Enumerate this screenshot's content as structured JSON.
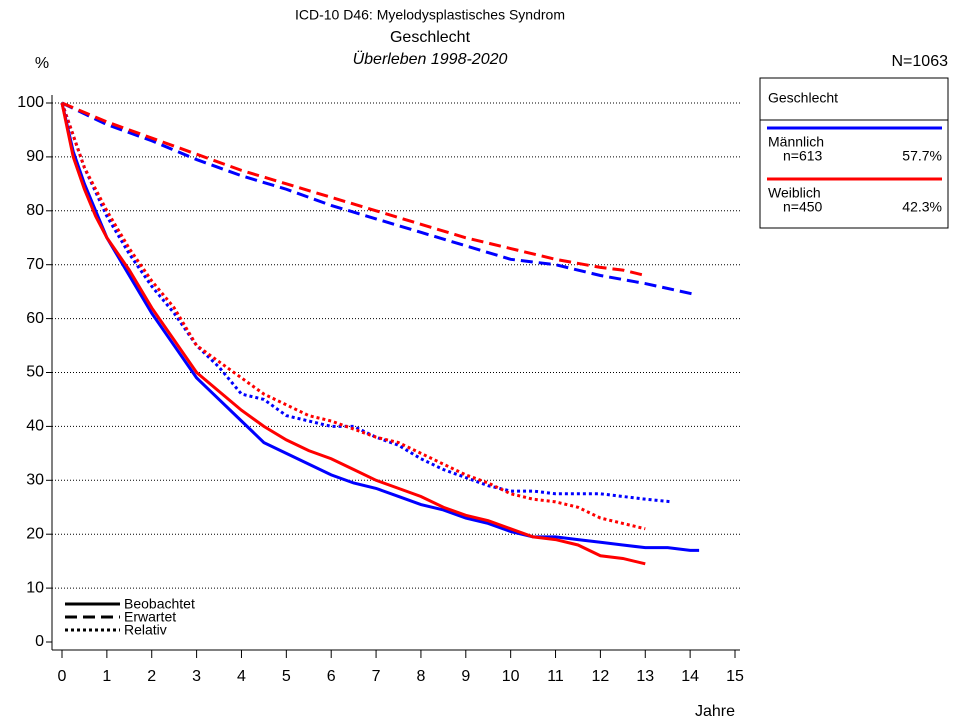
{
  "chart_data": {
    "type": "line",
    "title": "ICD-10 D46: Myelodysplastisches Syndrom",
    "subtitle": "Geschlecht",
    "period": "Überleben 1998-2020",
    "total": "N=1063",
    "y_label": "%",
    "x_label": "Jahre",
    "xlim": [
      0,
      15
    ],
    "xticks": [
      0,
      1,
      2,
      3,
      4,
      5,
      6,
      7,
      8,
      9,
      10,
      11,
      12,
      13,
      14,
      15
    ],
    "ylim": [
      0,
      100
    ],
    "yticks": [
      0,
      10,
      20,
      30,
      40,
      50,
      60,
      70,
      80,
      90,
      100
    ],
    "grid": true,
    "legend": {
      "title": "Geschlecht",
      "groups": [
        {
          "name": "Männlich",
          "count": "n=613",
          "share": "57.7%",
          "color": "#0000ff"
        },
        {
          "name": "Weiblich",
          "count": "n=450",
          "share": "42.3%",
          "color": "#ff0000"
        }
      ],
      "line_styles": [
        {
          "name": "Beobachtet",
          "dash": "none"
        },
        {
          "name": "Erwartet",
          "dash": "12,6"
        },
        {
          "name": "Relativ",
          "dash": "3,3"
        }
      ]
    },
    "series": [
      {
        "name": "Männlich",
        "line": "Erwartet",
        "color": "#0000ff",
        "dash": "12,6",
        "x": [
          0,
          1,
          2,
          3,
          4,
          5,
          6,
          7,
          8,
          9,
          10,
          11,
          12,
          13,
          14.1
        ],
        "values": [
          100,
          96,
          93,
          89.5,
          86.5,
          84,
          81,
          78.5,
          76,
          73.5,
          71,
          70,
          68,
          66.5,
          64.5
        ]
      },
      {
        "name": "Weiblich",
        "line": "Erwartet",
        "color": "#ff0000",
        "dash": "12,6",
        "x": [
          0,
          1,
          2,
          3,
          4,
          5,
          6,
          7,
          8,
          9,
          10,
          11,
          12,
          12.5,
          13
        ],
        "values": [
          100,
          96.5,
          93.5,
          90.5,
          87.5,
          85,
          82.5,
          80,
          77.5,
          75,
          73,
          71,
          69.5,
          69,
          68
        ]
      },
      {
        "name": "Männlich",
        "line": "Relativ",
        "color": "#0000ff",
        "dash": "3,3",
        "x": [
          0,
          0.5,
          1,
          1.5,
          2,
          2.5,
          3,
          3.5,
          4,
          4.5,
          5,
          5.5,
          6,
          6.5,
          7,
          7.5,
          8,
          8.5,
          9,
          9.5,
          10,
          10.5,
          11,
          11.5,
          12,
          12.5,
          13,
          13.6
        ],
        "values": [
          100,
          88,
          79,
          72,
          66,
          61,
          55,
          51,
          46,
          45,
          42,
          41,
          40,
          40,
          38,
          36.5,
          34,
          32,
          30.5,
          29,
          28,
          28,
          27.5,
          27.5,
          27.5,
          27,
          26.5,
          26
        ]
      },
      {
        "name": "Weiblich",
        "line": "Relativ",
        "color": "#ff0000",
        "dash": "3,3",
        "x": [
          0,
          0.5,
          1,
          1.5,
          2,
          2.5,
          3,
          3.5,
          4,
          4.5,
          5,
          5.5,
          6,
          6.5,
          7,
          7.5,
          8,
          8.5,
          9,
          9.5,
          10,
          10.5,
          11,
          11.5,
          12,
          12.5,
          13
        ],
        "values": [
          100,
          88,
          80,
          73,
          67,
          62,
          55,
          52,
          49,
          46,
          44,
          42,
          41,
          39.5,
          38,
          37,
          35,
          33,
          31,
          29.5,
          27.5,
          26.5,
          26,
          25,
          23,
          22,
          21
        ]
      },
      {
        "name": "Männlich",
        "line": "Beobachtet",
        "color": "#0000ff",
        "dash": "none",
        "x": [
          0,
          0.25,
          0.5,
          0.75,
          1,
          1.5,
          2,
          2.5,
          3,
          3.5,
          4,
          4.5,
          5,
          5.5,
          6,
          6.5,
          7,
          7.5,
          8,
          8.5,
          9,
          9.5,
          10,
          10.5,
          11,
          11.5,
          12,
          12.5,
          13,
          13.5,
          14,
          14.2
        ],
        "values": [
          100,
          91,
          85,
          80,
          75,
          68,
          61,
          55,
          49,
          45,
          41,
          37,
          35,
          33,
          31,
          29.5,
          28.5,
          27,
          25.5,
          24.5,
          23,
          22,
          20.5,
          19.5,
          19.5,
          19,
          18.5,
          18,
          17.5,
          17.5,
          17,
          17
        ]
      },
      {
        "name": "Weiblich",
        "line": "Beobachtet",
        "color": "#ff0000",
        "dash": "none",
        "x": [
          0,
          0.25,
          0.5,
          0.75,
          1,
          1.5,
          2,
          2.5,
          3,
          3.5,
          4,
          4.5,
          5,
          5.5,
          6,
          6.5,
          7,
          7.5,
          8,
          8.5,
          9,
          9.5,
          10,
          10.5,
          11,
          11.5,
          12,
          12.5,
          13
        ],
        "values": [
          100,
          90,
          84,
          79,
          75,
          69,
          62,
          56,
          50,
          46.5,
          43,
          40,
          37.5,
          35.5,
          34,
          32,
          30,
          28.5,
          27,
          25,
          23.5,
          22.5,
          21,
          19.5,
          19,
          18,
          16,
          15.5,
          14.5
        ]
      }
    ]
  }
}
